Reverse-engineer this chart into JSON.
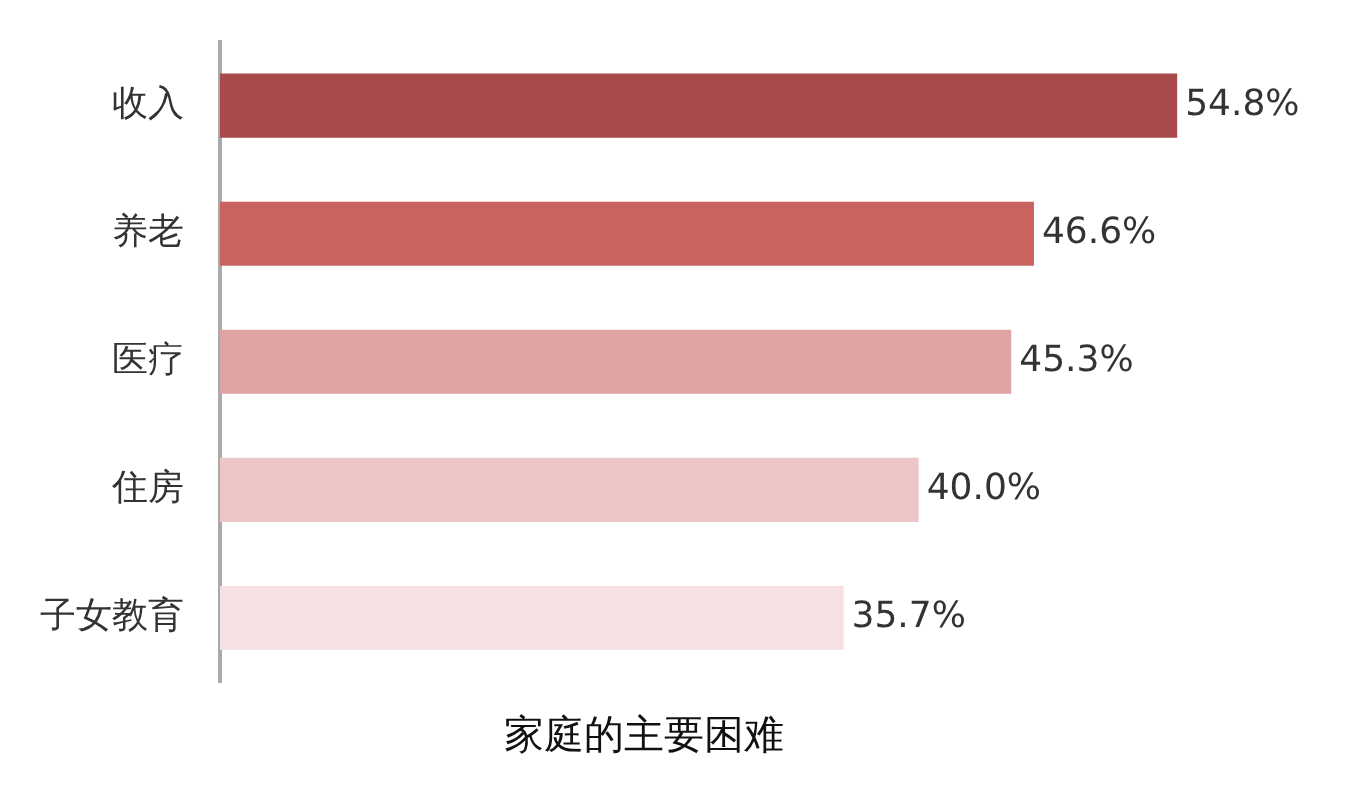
{
  "chart_data": {
    "type": "bar",
    "orientation": "horizontal",
    "title": "家庭的主要困难",
    "categories": [
      "收入",
      "养老",
      "医疗",
      "住房",
      "子女教育"
    ],
    "values": [
      54.8,
      46.6,
      45.3,
      40.0,
      35.7
    ],
    "colors": [
      "#a84a4c",
      "#c8635f",
      "#dea4a3",
      "#edc5c6",
      "#f5e1e2"
    ],
    "value_labels": [
      "54.8%",
      "46.6%",
      "45.3%",
      "40.0%",
      "35.7%"
    ],
    "legend": false
  }
}
